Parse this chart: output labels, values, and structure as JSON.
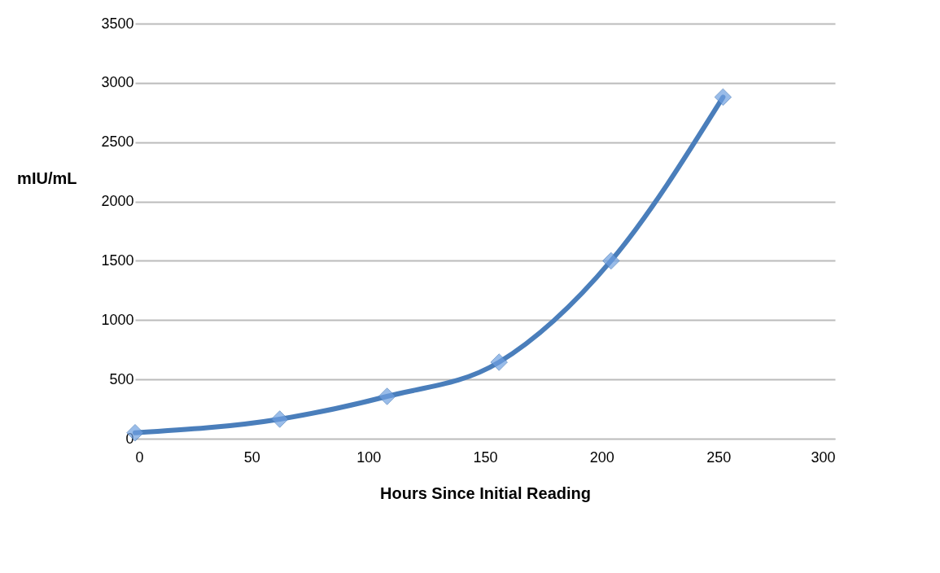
{
  "chart_data": {
    "type": "line",
    "xlabel": "Hours Since Initial Reading",
    "ylabel": "mIU/mL",
    "x": [
      0,
      62,
      108,
      156,
      204,
      252
    ],
    "series": [
      {
        "color": "#4a7ebb",
        "values": [
          50,
          165,
          357,
          645,
          1500,
          2880
        ]
      }
    ],
    "xlim": [
      0,
      300
    ],
    "xticks": [
      0,
      50,
      100,
      150,
      200,
      250,
      300
    ],
    "ylim": [
      0,
      3500
    ],
    "yticks": [
      0,
      500,
      1000,
      1500,
      2000,
      2500,
      3000,
      3500
    ],
    "grid": "y",
    "marker": "diamond",
    "line_style": "solid"
  }
}
